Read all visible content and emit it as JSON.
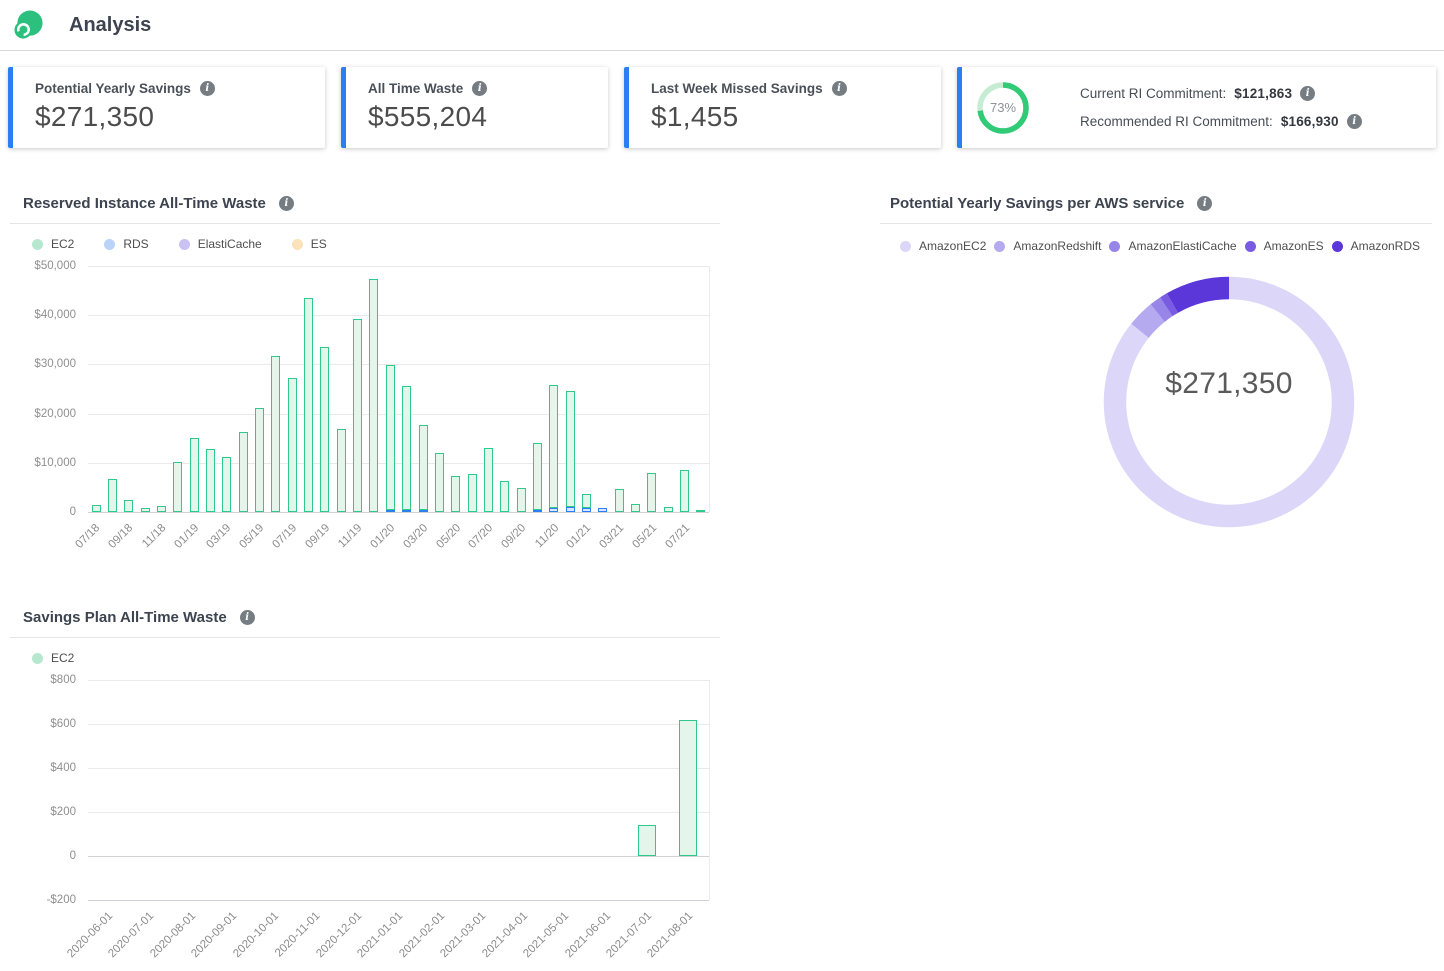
{
  "header": {
    "title": "Analysis",
    "logo": "spot-logo",
    "logo_color": "#2bc07e"
  },
  "kpis": {
    "accent_color": "#2b7ff2",
    "cards": [
      {
        "label": "Potential Yearly Savings",
        "value": "$271,350"
      },
      {
        "label": "All Time Waste",
        "value": "$555,204"
      },
      {
        "label": "Last Week Missed Savings",
        "value": "$1,455"
      }
    ],
    "ri_card": {
      "gauge_label": "73%",
      "gauge_value": 73,
      "gauge_color": "#31cb77",
      "gauge_track_color": "#c6edd4",
      "rows": [
        {
          "label": "Current RI Commitment:",
          "value": "$121,863"
        },
        {
          "label": "Recommended RI Commitment:",
          "value": "$166,930"
        }
      ]
    }
  },
  "chart_data": [
    {
      "type": "bar",
      "title": "Reserved Instance All-Time Waste",
      "legend": [
        {
          "label": "EC2",
          "color": "#b7e8cf"
        },
        {
          "label": "RDS",
          "color": "#bad3f8"
        },
        {
          "label": "ElastiCache",
          "color": "#c9c2f3"
        },
        {
          "label": "ES",
          "color": "#fbe2ba"
        }
      ],
      "categories": [
        "07/18",
        "08/18",
        "09/18",
        "10/18",
        "11/18",
        "12/18",
        "01/19",
        "02/19",
        "03/19",
        "04/19",
        "05/19",
        "06/19",
        "07/19",
        "08/19",
        "09/19",
        "10/19",
        "11/19",
        "12/19",
        "01/20",
        "02/20",
        "03/20",
        "04/20",
        "05/20",
        "06/20",
        "07/20",
        "08/20",
        "09/20",
        "10/20",
        "11/20",
        "12/20",
        "01/21",
        "02/21",
        "03/21",
        "04/21",
        "05/21",
        "06/21",
        "07/21",
        "08/21"
      ],
      "x_tick_every": 2,
      "ylim": [
        0,
        50000
      ],
      "grid": true,
      "legend_position": "top-left",
      "y_ticks": [
        {
          "label": "$50,000",
          "value": 50000
        },
        {
          "label": "$40,000",
          "value": 40000
        },
        {
          "label": "$30,000",
          "value": 30000
        },
        {
          "label": "$20,000",
          "value": 20000
        },
        {
          "label": "$10,000",
          "value": 10000
        },
        {
          "label": "0",
          "value": 0
        }
      ],
      "stack": true,
      "series": [
        {
          "name": "EC2",
          "fill": "#e4f6ec",
          "border": "#2fc98c",
          "values": [
            1500,
            6800,
            2400,
            900,
            1300,
            10200,
            15000,
            12900,
            11200,
            16300,
            21200,
            31700,
            27300,
            43400,
            33600,
            16800,
            39200,
            47300,
            29400,
            25300,
            17300,
            12000,
            7300,
            7700,
            13000,
            6300,
            4800,
            13500,
            25000,
            23600,
            2700,
            0,
            4700,
            1700,
            8000,
            1000,
            8600,
            300
          ]
        },
        {
          "name": "RDS",
          "fill": "#d9e7fc",
          "border": "#2b7ff2",
          "values": [
            0,
            0,
            0,
            0,
            0,
            0,
            0,
            0,
            0,
            0,
            0,
            0,
            0,
            0,
            0,
            0,
            0,
            0,
            400,
            400,
            400,
            0,
            0,
            0,
            0,
            0,
            0,
            500,
            800,
            1000,
            900,
            900,
            0,
            0,
            0,
            0,
            0,
            0
          ]
        },
        {
          "name": "ElastiCache",
          "fill": "#e6e1fa",
          "border": "#8f7de8",
          "values": [
            0,
            0,
            0,
            0,
            0,
            0,
            0,
            0,
            0,
            0,
            0,
            0,
            0,
            0,
            0,
            0,
            0,
            0,
            0,
            0,
            0,
            0,
            0,
            0,
            0,
            0,
            0,
            0,
            0,
            0,
            0,
            0,
            0,
            0,
            0,
            0,
            0,
            0
          ]
        },
        {
          "name": "ES",
          "fill": "#fdeed3",
          "border": "#f0b65a",
          "values": [
            0,
            0,
            0,
            0,
            0,
            0,
            0,
            0,
            0,
            0,
            0,
            0,
            0,
            0,
            0,
            0,
            0,
            0,
            0,
            0,
            0,
            0,
            0,
            0,
            0,
            0,
            0,
            0,
            0,
            0,
            0,
            0,
            0,
            0,
            0,
            0,
            0,
            0
          ]
        }
      ]
    },
    {
      "type": "pie",
      "title": "Potential Yearly Savings per AWS service",
      "center_label": "$271,350",
      "total": 271350,
      "legend_position": "top",
      "slices": [
        {
          "label": "AmazonEC2",
          "value": 232550,
          "color": "#dcd7f8"
        },
        {
          "label": "AmazonRedshift",
          "value": 9500,
          "color": "#b5a9f0"
        },
        {
          "label": "AmazonElastiCache",
          "value": 4050,
          "color": "#9785e8"
        },
        {
          "label": "AmazonES",
          "value": 2700,
          "color": "#7a5ce2"
        },
        {
          "label": "AmazonRDS",
          "value": 22550,
          "color": "#5b36d9"
        }
      ]
    },
    {
      "type": "bar",
      "title": "Savings Plan All-Time Waste",
      "legend": [
        {
          "label": "EC2",
          "color": "#b7e8cf"
        }
      ],
      "categories": [
        "2020-06-01",
        "2020-07-01",
        "2020-08-01",
        "2020-09-01",
        "2020-10-01",
        "2020-11-01",
        "2020-12-01",
        "2021-01-01",
        "2021-02-01",
        "2021-03-01",
        "2021-04-01",
        "2021-05-01",
        "2021-06-01",
        "2021-07-01",
        "2021-08-01"
      ],
      "x_tick_every": 1,
      "ylim": [
        -200,
        800
      ],
      "grid": true,
      "legend_position": "top-left",
      "y_ticks": [
        {
          "label": "$800",
          "value": 800
        },
        {
          "label": "$600",
          "value": 600
        },
        {
          "label": "$400",
          "value": 400
        },
        {
          "label": "$200",
          "value": 200
        },
        {
          "label": "0",
          "value": 0
        },
        {
          "label": "-$200",
          "value": -200
        }
      ],
      "stack": true,
      "series": [
        {
          "name": "EC2",
          "fill": "#e4f6ec",
          "border": "#2fc98c",
          "values": [
            0,
            0,
            0,
            0,
            0,
            0,
            0,
            0,
            0,
            0,
            0,
            0,
            0,
            140,
            620
          ]
        }
      ]
    }
  ]
}
